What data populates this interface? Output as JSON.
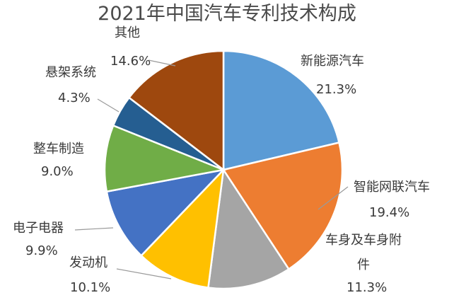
{
  "chart_data": {
    "type": "pie",
    "title": "2021年中国汽车专利技术构成",
    "slices": [
      {
        "name": "新能源汽车",
        "value": 21.3,
        "value_label": "21.3%",
        "color": "#5b9bd5"
      },
      {
        "name": "智能网联汽车",
        "value": 19.4,
        "value_label": "19.4%",
        "color": "#ed7d31"
      },
      {
        "name": "车身及车身附件",
        "name_lines": [
          "车身及车身附",
          "件"
        ],
        "value": 11.3,
        "value_label": "11.3%",
        "color": "#a5a5a5"
      },
      {
        "name": "发动机",
        "value": 10.1,
        "value_label": "10.1%",
        "color": "#ffc000"
      },
      {
        "name": "电子电器",
        "value": 9.9,
        "value_label": "9.9%",
        "color": "#4472c4"
      },
      {
        "name": "整车制造",
        "value": 9.0,
        "value_label": "9.0%",
        "color": "#70ad47"
      },
      {
        "name": "悬架系统",
        "value": 4.3,
        "value_label": "4.3%",
        "color": "#255e91"
      },
      {
        "name": "其他",
        "value": 14.6,
        "value_label": "14.6%",
        "color": "#9e480e"
      }
    ]
  }
}
